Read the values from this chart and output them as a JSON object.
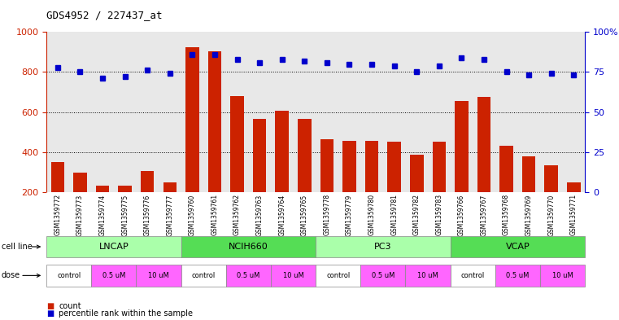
{
  "title": "GDS4952 / 227437_at",
  "samples": [
    "GSM1359772",
    "GSM1359773",
    "GSM1359774",
    "GSM1359775",
    "GSM1359776",
    "GSM1359777",
    "GSM1359760",
    "GSM1359761",
    "GSM1359762",
    "GSM1359763",
    "GSM1359764",
    "GSM1359765",
    "GSM1359778",
    "GSM1359779",
    "GSM1359780",
    "GSM1359781",
    "GSM1359782",
    "GSM1359783",
    "GSM1359766",
    "GSM1359767",
    "GSM1359768",
    "GSM1359769",
    "GSM1359770",
    "GSM1359771"
  ],
  "counts": [
    350,
    295,
    230,
    230,
    305,
    248,
    925,
    905,
    680,
    565,
    605,
    565,
    465,
    455,
    455,
    450,
    385,
    450,
    655,
    675,
    430,
    380,
    335,
    248
  ],
  "percentile_ranks": [
    78,
    75,
    71,
    72,
    76,
    74,
    86,
    86,
    83,
    81,
    83,
    82,
    81,
    80,
    80,
    79,
    75,
    79,
    84,
    83,
    75,
    73,
    74,
    73
  ],
  "cell_lines": [
    {
      "name": "LNCAP",
      "start": 0,
      "end": 6,
      "color": "#AAFFAA"
    },
    {
      "name": "NCIH660",
      "start": 6,
      "end": 12,
      "color": "#55DD55"
    },
    {
      "name": "PC3",
      "start": 12,
      "end": 18,
      "color": "#AAFFAA"
    },
    {
      "name": "VCAP",
      "start": 18,
      "end": 24,
      "color": "#55DD55"
    }
  ],
  "dose_defs": [
    {
      "name": "control",
      "start": 0,
      "end": 2,
      "color": "#FFFFFF"
    },
    {
      "name": "0.5 uM",
      "start": 2,
      "end": 4,
      "color": "#FF66FF"
    },
    {
      "name": "10 uM",
      "start": 4,
      "end": 6,
      "color": "#FF66FF"
    },
    {
      "name": "control",
      "start": 6,
      "end": 8,
      "color": "#FFFFFF"
    },
    {
      "name": "0.5 uM",
      "start": 8,
      "end": 10,
      "color": "#FF66FF"
    },
    {
      "name": "10 uM",
      "start": 10,
      "end": 12,
      "color": "#FF66FF"
    },
    {
      "name": "control",
      "start": 12,
      "end": 14,
      "color": "#FFFFFF"
    },
    {
      "name": "0.5 uM",
      "start": 14,
      "end": 16,
      "color": "#FF66FF"
    },
    {
      "name": "10 uM",
      "start": 16,
      "end": 18,
      "color": "#FF66FF"
    },
    {
      "name": "control",
      "start": 18,
      "end": 20,
      "color": "#FFFFFF"
    },
    {
      "name": "0.5 uM",
      "start": 20,
      "end": 22,
      "color": "#FF66FF"
    },
    {
      "name": "10 uM",
      "start": 22,
      "end": 24,
      "color": "#FF66FF"
    }
  ],
  "bar_color": "#CC2200",
  "dot_color": "#0000CC",
  "ylim_left": [
    200,
    1000
  ],
  "ylim_right": [
    0,
    100
  ],
  "yticks_left": [
    200,
    400,
    600,
    800,
    1000
  ],
  "yticks_right": [
    0,
    25,
    50,
    75,
    100
  ],
  "grid_lines": [
    400,
    600,
    800
  ],
  "xticklabel_bg": "#D8D8D8",
  "plot_bg_color": "#E8E8E8"
}
